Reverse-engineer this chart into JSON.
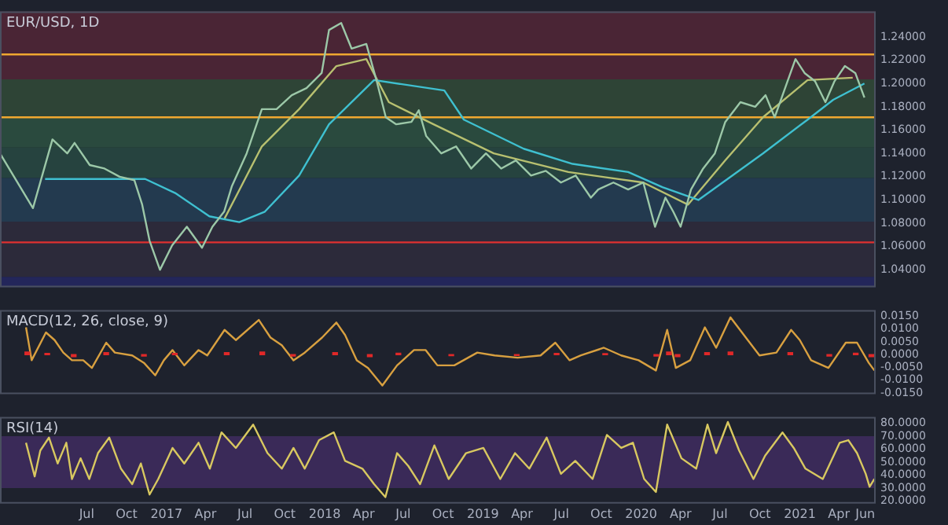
{
  "chart_data": [
    {
      "type": "line",
      "title": "EUR/USD, 1D",
      "tick_labels": "y",
      "xlim": [
        "2015-12-14",
        "2021-06-25"
      ],
      "ylim": [
        1.025,
        1.262
      ],
      "yticks": [
        {
          "value": 1.04,
          "label": "1.04000"
        },
        {
          "value": 1.06,
          "label": "1.06000"
        },
        {
          "value": 1.08,
          "label": "1.08000"
        },
        {
          "value": 1.1,
          "label": "1.10000"
        },
        {
          "value": 1.12,
          "label": "1.12000"
        },
        {
          "value": 1.14,
          "label": "1.14000"
        },
        {
          "value": 1.16,
          "label": "1.16000"
        },
        {
          "value": 1.18,
          "label": "1.18000"
        },
        {
          "value": 1.2,
          "label": "1.20000"
        },
        {
          "value": 1.22,
          "label": "1.22000"
        },
        {
          "value": 1.24,
          "label": "1.24000"
        }
      ],
      "bands": [
        {
          "axis": "y",
          "from": 1.2036,
          "to": 1.262,
          "color": "#4a2535"
        },
        {
          "axis": "y",
          "from": 1.1712,
          "to": 1.2036,
          "color": "#2e4436"
        },
        {
          "axis": "y",
          "from": 1.145,
          "to": 1.1712,
          "color": "#2a4a3e"
        },
        {
          "axis": "y",
          "from": 1.1188,
          "to": 1.145,
          "color": "#26433f"
        },
        {
          "axis": "y",
          "from": 1.0815,
          "to": 1.1188,
          "color": "#233a4f"
        },
        {
          "axis": "y",
          "from": 1.034,
          "to": 1.0815,
          "color": "#2c2a3a"
        },
        {
          "axis": "y",
          "from": 1.025,
          "to": 1.034,
          "color": "#23265a"
        }
      ],
      "ref_lines": [
        {
          "axis": "y",
          "value": 1.225,
          "color": "#f0a830"
        },
        {
          "axis": "y",
          "value": 1.171,
          "color": "#f0a830"
        },
        {
          "axis": "y",
          "value": 1.0636,
          "color": "#e03030"
        }
      ],
      "series": [
        {
          "color": "#9cc8a8",
          "x": [
            "2015-12-14",
            "2016-02-28",
            "2016-04-13",
            "2016-05-17",
            "2016-06-03",
            "2016-07-08",
            "2016-08-11",
            "2016-09-15",
            "2016-10-19",
            "2016-11-06",
            "2016-11-23",
            "2016-12-17",
            "2017-01-14",
            "2017-02-17",
            "2017-03-24",
            "2017-04-17",
            "2017-05-14",
            "2017-06-01",
            "2017-07-05",
            "2017-08-09",
            "2017-09-12",
            "2017-10-17",
            "2017-11-20",
            "2017-12-25",
            "2018-01-11",
            "2018-02-08",
            "2018-03-04",
            "2018-04-07",
            "2018-05-01",
            "2018-05-22",
            "2018-06-15",
            "2018-07-20",
            "2018-08-06",
            "2018-08-23",
            "2018-09-27",
            "2018-10-31",
            "2018-12-05",
            "2019-01-08",
            "2019-02-12",
            "2019-03-18",
            "2019-04-22",
            "2019-05-26",
            "2019-06-30",
            "2019-08-03",
            "2019-09-07",
            "2019-09-24",
            "2019-10-29",
            "2019-12-02",
            "2020-01-06",
            "2020-02-02",
            "2020-02-26",
            "2020-03-15",
            "2020-04-01",
            "2020-04-25",
            "2020-05-23",
            "2020-06-19",
            "2020-07-13",
            "2020-08-17",
            "2020-09-20",
            "2020-10-14",
            "2020-11-04",
            "2020-11-28",
            "2020-12-22",
            "2021-01-12",
            "2021-02-05",
            "2021-03-01",
            "2021-03-22",
            "2021-04-15",
            "2021-05-09",
            "2021-05-30"
          ],
          "values": [
            1.14,
            1.093,
            1.152,
            1.14,
            1.149,
            1.13,
            1.127,
            1.12,
            1.117,
            1.096,
            1.065,
            1.04,
            1.061,
            1.077,
            1.059,
            1.077,
            1.09,
            1.112,
            1.14,
            1.178,
            1.178,
            1.19,
            1.196,
            1.209,
            1.246,
            1.252,
            1.23,
            1.234,
            1.202,
            1.171,
            1.165,
            1.167,
            1.177,
            1.155,
            1.14,
            1.146,
            1.127,
            1.14,
            1.127,
            1.134,
            1.121,
            1.125,
            1.115,
            1.121,
            1.102,
            1.109,
            1.115,
            1.109,
            1.115,
            1.077,
            1.102,
            1.09,
            1.077,
            1.109,
            1.127,
            1.14,
            1.167,
            1.184,
            1.18,
            1.19,
            1.171,
            1.196,
            1.221,
            1.209,
            1.202,
            1.184,
            1.202,
            1.215,
            1.209,
            1.188
          ]
        },
        {
          "color": "#3fc0d0",
          "x": [
            "2016-03-27",
            "2016-11-13",
            "2017-01-21",
            "2017-04-10",
            "2017-06-18",
            "2017-08-16",
            "2017-11-03",
            "2018-01-11",
            "2018-04-25",
            "2018-10-04",
            "2018-11-18",
            "2019-04-05",
            "2019-07-27",
            "2019-12-02",
            "2020-02-19",
            "2020-05-12",
            "2020-10-08",
            "2021-01-19",
            "2021-03-19",
            "2021-05-30"
          ],
          "values": [
            1.118,
            1.118,
            1.106,
            1.086,
            1.081,
            1.09,
            1.121,
            1.165,
            1.203,
            1.194,
            1.169,
            1.144,
            1.131,
            1.124,
            1.111,
            1.1,
            1.14,
            1.169,
            1.186,
            1.2
          ]
        },
        {
          "color": "#b8c070",
          "x": [
            "2017-05-15",
            "2017-08-09",
            "2017-11-03",
            "2018-01-28",
            "2018-04-07",
            "2018-05-29",
            "2018-09-09",
            "2019-01-26",
            "2019-07-17",
            "2020-01-06",
            "2020-04-18",
            "2020-07-13",
            "2020-10-08",
            "2021-01-19",
            "2021-05-03"
          ],
          "values": [
            1.084,
            1.146,
            1.178,
            1.215,
            1.221,
            1.184,
            1.165,
            1.14,
            1.124,
            1.115,
            1.096,
            1.134,
            1.171,
            1.203,
            1.205
          ]
        }
      ]
    },
    {
      "type": "line",
      "title": "MACD(12, 26, close, 9)",
      "tick_labels": "y",
      "xlim": [
        "2015-12-14",
        "2021-06-25"
      ],
      "ylim": [
        -0.0155,
        0.0175
      ],
      "yticks": [
        {
          "value": -0.015,
          "label": "-0.0150"
        },
        {
          "value": -0.01,
          "label": "-0.0100"
        },
        {
          "value": -0.005,
          "label": "-0.0050"
        },
        {
          "value": 0,
          "label": "0.0000"
        },
        {
          "value": 0.005,
          "label": "0.0050"
        },
        {
          "value": 0.01,
          "label": "0.0100"
        },
        {
          "value": 0.015,
          "label": "0.0150"
        }
      ],
      "series": [
        {
          "type": "bar",
          "color": "#e02828",
          "x": [
            "2016-02-15",
            "2016-04-01",
            "2016-06-01",
            "2016-08-15",
            "2016-11-10",
            "2017-01-20",
            "2017-05-20",
            "2017-08-10",
            "2017-10-20",
            "2018-01-25",
            "2018-04-15",
            "2018-06-20",
            "2018-10-20",
            "2019-03-20",
            "2019-06-20",
            "2019-10-10",
            "2020-02-05",
            "2020-03-05",
            "2020-03-25",
            "2020-06-01",
            "2020-07-25",
            "2020-12-10",
            "2021-03-10",
            "2021-05-10",
            "2021-06-15"
          ],
          "values": [
            0.001,
            0.0005,
            -0.0008,
            0.0008,
            -0.0006,
            0.0005,
            0.0008,
            0.001,
            -0.0006,
            0.0008,
            -0.0008,
            0.0006,
            -0.0004,
            -0.0003,
            0.0005,
            0.0004,
            -0.0006,
            0.001,
            -0.0008,
            0.0008,
            0.001,
            0.0008,
            -0.0006,
            0.0006,
            -0.0008
          ]
        },
        {
          "color": "#d8a040",
          "x": [
            "2016-02-12",
            "2016-02-25",
            "2016-03-29",
            "2016-04-18",
            "2016-05-08",
            "2016-05-28",
            "2016-06-23",
            "2016-07-13",
            "2016-08-15",
            "2016-09-04",
            "2016-10-14",
            "2016-11-10",
            "2016-12-06",
            "2016-12-26",
            "2017-01-15",
            "2017-02-11",
            "2017-03-16",
            "2017-04-05",
            "2017-05-15",
            "2017-06-10",
            "2017-08-02",
            "2017-08-29",
            "2017-09-24",
            "2017-10-21",
            "2017-11-16",
            "2017-12-26",
            "2018-01-28",
            "2018-02-17",
            "2018-03-16",
            "2018-04-11",
            "2018-05-14",
            "2018-06-17",
            "2018-07-26",
            "2018-08-22",
            "2018-09-18",
            "2018-10-27",
            "2018-12-19",
            "2019-01-28",
            "2019-03-22",
            "2019-05-14",
            "2019-06-17",
            "2019-07-20",
            "2019-08-15",
            "2019-10-07",
            "2019-11-16",
            "2019-12-26",
            "2020-02-04",
            "2020-03-01",
            "2020-03-21",
            "2020-04-23",
            "2020-05-27",
            "2020-06-22",
            "2020-07-25",
            "2020-09-03",
            "2020-09-30",
            "2020-11-08",
            "2020-12-12",
            "2021-01-01",
            "2021-01-27",
            "2021-03-08",
            "2021-04-17",
            "2021-05-13",
            "2021-06-09",
            "2021-06-22"
          ],
          "values": [
            0.0107,
            -0.0022,
            0.0087,
            0.0057,
            0.0008,
            -0.0022,
            -0.0022,
            -0.0052,
            0.0047,
            0.0008,
            -0.0003,
            -0.0032,
            -0.0081,
            -0.0022,
            0.0018,
            -0.0042,
            0.0018,
            -0.0003,
            0.0097,
            0.0057,
            0.0136,
            0.0067,
            0.0037,
            -0.0022,
            0.0008,
            0.0067,
            0.0126,
            0.0077,
            -0.0022,
            -0.0052,
            -0.0121,
            -0.0042,
            0.0018,
            0.0018,
            -0.0042,
            -0.0042,
            0.0008,
            -0.0003,
            -0.0012,
            -0.0003,
            0.0047,
            -0.0022,
            -0.0003,
            0.0027,
            -0.0003,
            -0.0022,
            -0.0062,
            0.0097,
            -0.0052,
            -0.0022,
            0.0107,
            0.0027,
            0.0146,
            0.0057,
            -0.0003,
            0.0008,
            0.0097,
            0.0057,
            -0.0022,
            -0.0052,
            0.0047,
            0.0047,
            -0.0032,
            -0.0062
          ]
        }
      ]
    },
    {
      "type": "line",
      "title": "RSI(14)",
      "xlim": [
        "2015-12-14",
        "2021-06-25"
      ],
      "ylim": [
        18,
        85
      ],
      "yticks": [
        {
          "value": 20,
          "label": "20.0000"
        },
        {
          "value": 30,
          "label": "30.0000"
        },
        {
          "value": 40,
          "label": "40.0000"
        },
        {
          "value": 50,
          "label": "50.0000"
        },
        {
          "value": 60,
          "label": "60.0000"
        },
        {
          "value": 70,
          "label": "70.0000"
        },
        {
          "value": 80,
          "label": "80.0000"
        }
      ],
      "xticks": [
        {
          "value": "2016-07-01",
          "label": "Jul"
        },
        {
          "value": "2016-10-01",
          "label": "Oct"
        },
        {
          "value": "2017-01-01",
          "label": "2017"
        },
        {
          "value": "2017-04-01",
          "label": "Apr"
        },
        {
          "value": "2017-07-01",
          "label": "Jul"
        },
        {
          "value": "2017-10-01",
          "label": "Oct"
        },
        {
          "value": "2018-01-01",
          "label": "2018"
        },
        {
          "value": "2018-04-01",
          "label": "Apr"
        },
        {
          "value": "2018-07-01",
          "label": "Jul"
        },
        {
          "value": "2018-10-01",
          "label": "Oct"
        },
        {
          "value": "2019-01-01",
          "label": "2019"
        },
        {
          "value": "2019-04-01",
          "label": "Apr"
        },
        {
          "value": "2019-07-01",
          "label": "Jul"
        },
        {
          "value": "2019-10-01",
          "label": "Oct"
        },
        {
          "value": "2020-01-01",
          "label": "2020"
        },
        {
          "value": "2020-04-01",
          "label": "Apr"
        },
        {
          "value": "2020-07-01",
          "label": "Jul"
        },
        {
          "value": "2020-10-01",
          "label": "Oct"
        },
        {
          "value": "2021-01-01",
          "label": "2021"
        },
        {
          "value": "2021-04-01",
          "label": "Apr"
        },
        {
          "value": "2021-06-01",
          "label": "Jun"
        }
      ],
      "bands": [
        {
          "axis": "y",
          "from": 30,
          "to": 70,
          "color": "#3a2a58"
        }
      ],
      "series": [
        {
          "color": "#d8c860",
          "x": [
            "2016-02-12",
            "2016-03-03",
            "2016-03-16",
            "2016-04-05",
            "2016-04-25",
            "2016-05-15",
            "2016-05-28",
            "2016-06-17",
            "2016-07-07",
            "2016-07-27",
            "2016-08-22",
            "2016-09-18",
            "2016-10-14",
            "2016-11-03",
            "2016-11-23",
            "2016-12-13",
            "2017-01-15",
            "2017-02-11",
            "2017-03-16",
            "2017-04-11",
            "2017-05-08",
            "2017-06-10",
            "2017-07-20",
            "2017-08-22",
            "2017-09-24",
            "2017-10-21",
            "2017-11-16",
            "2017-12-19",
            "2018-01-22",
            "2018-02-17",
            "2018-03-29",
            "2018-04-25",
            "2018-05-21",
            "2018-06-17",
            "2018-07-13",
            "2018-08-09",
            "2018-09-11",
            "2018-10-14",
            "2018-11-23",
            "2019-01-02",
            "2019-02-10",
            "2019-03-16",
            "2019-04-18",
            "2019-05-28",
            "2019-06-30",
            "2019-08-02",
            "2019-09-11",
            "2019-10-14",
            "2019-11-16",
            "2019-12-13",
            "2020-01-08",
            "2020-02-04",
            "2020-03-01",
            "2020-04-03",
            "2020-05-07",
            "2020-06-02",
            "2020-06-22",
            "2020-07-19",
            "2020-08-14",
            "2020-09-16",
            "2020-10-13",
            "2020-11-22",
            "2020-12-18",
            "2021-01-14",
            "2021-02-23",
            "2021-04-03",
            "2021-04-23",
            "2021-05-13",
            "2021-06-02",
            "2021-06-11",
            "2021-06-22"
          ],
          "values": [
            65,
            39,
            59,
            69,
            49,
            65,
            37,
            53,
            37,
            57,
            69,
            45,
            33,
            49,
            25,
            37,
            61,
            49,
            65,
            45,
            73,
            61,
            79,
            57,
            45,
            61,
            45,
            67,
            73,
            51,
            45,
            33,
            23,
            57,
            47,
            33,
            63,
            37,
            57,
            61,
            37,
            57,
            45,
            69,
            41,
            51,
            37,
            71,
            61,
            65,
            37,
            27,
            79,
            53,
            45,
            79,
            57,
            81,
            59,
            37,
            55,
            73,
            61,
            45,
            37,
            65,
            67,
            57,
            41,
            31,
            37
          ]
        }
      ]
    }
  ]
}
